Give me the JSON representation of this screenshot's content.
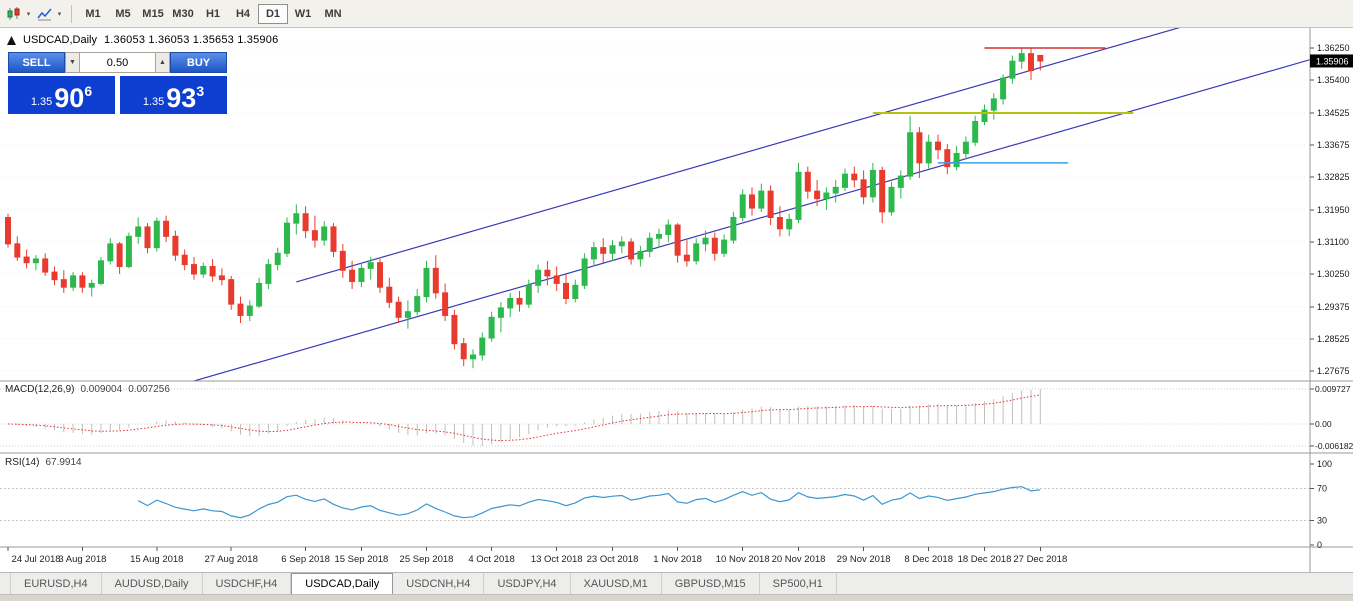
{
  "icons": {
    "caret": "▾",
    "spinner_up": "▲",
    "spinner_down": "▼"
  },
  "toolbar": {
    "timeframes": [
      "M1",
      "M5",
      "M15",
      "M30",
      "H1",
      "H4",
      "D1",
      "W1",
      "MN"
    ],
    "active_timeframe": "D1"
  },
  "chart_header": {
    "symbol": "USDCAD,Daily",
    "ohlc": "1.36053 1.36053 1.35653 1.35906"
  },
  "trade_panel": {
    "sell_label": "SELL",
    "buy_label": "BUY",
    "lot_value": "0.50",
    "sell_price_prefix": "1.35",
    "sell_price_big": "90",
    "sell_price_sup": "6",
    "buy_price_prefix": "1.35",
    "buy_price_big": "93",
    "buy_price_sup": "3"
  },
  "colors": {
    "bull": "#2db84d",
    "bear": "#e93a2e",
    "channel": "#3a3ab8",
    "grid": "#ebebeb",
    "separator": "#9a9a9a",
    "axis_text": "#1a1a1a",
    "macd_histogram": "#c0c0c0",
    "macd_signal": "#e03131",
    "rsi_line": "#3c96d2"
  },
  "chart_data": {
    "type": "candlestick",
    "symbol": "USDCAD",
    "timeframe": "Daily",
    "current_price": "1.35906",
    "y_axis": {
      "max": 1.3625,
      "min": 1.27675,
      "labels": [
        "1.36250",
        "1.35400",
        "1.34525",
        "1.33675",
        "1.32825",
        "1.31950",
        "1.31100",
        "1.30250",
        "1.29375",
        "1.28525",
        "1.27675"
      ]
    },
    "x_labels": [
      {
        "text": "24 Jul 2018",
        "i": 0
      },
      {
        "text": "3 Aug 2018",
        "i": 8
      },
      {
        "text": "15 Aug 2018",
        "i": 16
      },
      {
        "text": "27 Aug 2018",
        "i": 24
      },
      {
        "text": "6 Sep 2018",
        "i": 32
      },
      {
        "text": "15 Sep 2018",
        "i": 38
      },
      {
        "text": "25 Sep 2018",
        "i": 45
      },
      {
        "text": "4 Oct 2018",
        "i": 52
      },
      {
        "text": "13 Oct 2018",
        "i": 59
      },
      {
        "text": "23 Oct 2018",
        "i": 65
      },
      {
        "text": "1 Nov 2018",
        "i": 72
      },
      {
        "text": "10 Nov 2018",
        "i": 79
      },
      {
        "text": "20 Nov 2018",
        "i": 85
      },
      {
        "text": "29 Nov 2018",
        "i": 92
      },
      {
        "text": "8 Dec 2018",
        "i": 99
      },
      {
        "text": "18 Dec 2018",
        "i": 105
      },
      {
        "text": "27 Dec 2018",
        "i": 111
      }
    ],
    "candles": [
      [
        1.3175,
        1.3185,
        1.3095,
        1.3105
      ],
      [
        1.3105,
        1.3125,
        1.306,
        1.307
      ],
      [
        1.307,
        1.309,
        1.304,
        1.3055
      ],
      [
        1.3055,
        1.3075,
        1.3035,
        1.3065
      ],
      [
        1.3065,
        1.308,
        1.302,
        1.303
      ],
      [
        1.303,
        1.3045,
        1.2995,
        1.301
      ],
      [
        1.301,
        1.3035,
        1.2975,
        1.299
      ],
      [
        1.299,
        1.303,
        1.298,
        1.302
      ],
      [
        1.302,
        1.303,
        1.2975,
        1.299
      ],
      [
        1.299,
        1.301,
        1.2965,
        1.3
      ],
      [
        1.3,
        1.307,
        1.2995,
        1.306
      ],
      [
        1.306,
        1.312,
        1.305,
        1.3105
      ],
      [
        1.3105,
        1.311,
        1.3025,
        1.3045
      ],
      [
        1.3045,
        1.3135,
        1.304,
        1.3125
      ],
      [
        1.3125,
        1.3175,
        1.3105,
        1.315
      ],
      [
        1.315,
        1.316,
        1.308,
        1.3095
      ],
      [
        1.3095,
        1.3175,
        1.3085,
        1.3165
      ],
      [
        1.3165,
        1.318,
        1.311,
        1.3125
      ],
      [
        1.3125,
        1.314,
        1.306,
        1.3075
      ],
      [
        1.3075,
        1.309,
        1.3035,
        1.305
      ],
      [
        1.305,
        1.307,
        1.301,
        1.3025
      ],
      [
        1.3025,
        1.3055,
        1.3015,
        1.3045
      ],
      [
        1.3045,
        1.3065,
        1.3005,
        1.302
      ],
      [
        1.302,
        1.304,
        1.2995,
        1.301
      ],
      [
        1.301,
        1.302,
        1.293,
        1.2945
      ],
      [
        1.2945,
        1.2965,
        1.2895,
        1.2915
      ],
      [
        1.2915,
        1.2955,
        1.29,
        1.294
      ],
      [
        1.294,
        1.3015,
        1.2935,
        1.3
      ],
      [
        1.3,
        1.3065,
        1.2985,
        1.305
      ],
      [
        1.305,
        1.3095,
        1.3035,
        1.308
      ],
      [
        1.308,
        1.3175,
        1.307,
        1.316
      ],
      [
        1.316,
        1.321,
        1.313,
        1.3185
      ],
      [
        1.3185,
        1.3205,
        1.312,
        1.314
      ],
      [
        1.314,
        1.318,
        1.3095,
        1.3115
      ],
      [
        1.3115,
        1.3165,
        1.31,
        1.315
      ],
      [
        1.315,
        1.316,
        1.307,
        1.3085
      ],
      [
        1.3085,
        1.3105,
        1.3015,
        1.3035
      ],
      [
        1.3035,
        1.306,
        1.2985,
        1.3005
      ],
      [
        1.3005,
        1.3055,
        1.299,
        1.304
      ],
      [
        1.304,
        1.307,
        1.301,
        1.3055
      ],
      [
        1.3055,
        1.3065,
        1.2975,
        1.299
      ],
      [
        1.299,
        1.3015,
        1.2935,
        1.295
      ],
      [
        1.295,
        1.2965,
        1.2895,
        1.291
      ],
      [
        1.291,
        1.2955,
        1.288,
        1.2925
      ],
      [
        1.2925,
        1.2985,
        1.2915,
        1.2965
      ],
      [
        1.2965,
        1.306,
        1.295,
        1.304
      ],
      [
        1.304,
        1.3075,
        1.296,
        1.2975
      ],
      [
        1.2975,
        1.3,
        1.29,
        1.2915
      ],
      [
        1.2915,
        1.293,
        1.2825,
        1.284
      ],
      [
        1.284,
        1.2855,
        1.278,
        1.28
      ],
      [
        1.28,
        1.2825,
        1.2775,
        1.281
      ],
      [
        1.281,
        1.287,
        1.2795,
        1.2855
      ],
      [
        1.2855,
        1.2925,
        1.2845,
        1.291
      ],
      [
        1.291,
        1.295,
        1.287,
        1.2935
      ],
      [
        1.2935,
        1.2975,
        1.291,
        1.296
      ],
      [
        1.296,
        1.298,
        1.2925,
        1.2945
      ],
      [
        1.2945,
        1.301,
        1.2935,
        1.2995
      ],
      [
        1.2995,
        1.305,
        1.2975,
        1.3035
      ],
      [
        1.3035,
        1.306,
        1.2995,
        1.302
      ],
      [
        1.302,
        1.3045,
        1.298,
        1.3
      ],
      [
        1.3,
        1.3025,
        1.2945,
        1.296
      ],
      [
        1.296,
        1.301,
        1.295,
        1.2995
      ],
      [
        1.2995,
        1.308,
        1.2985,
        1.3065
      ],
      [
        1.3065,
        1.311,
        1.3045,
        1.3095
      ],
      [
        1.3095,
        1.312,
        1.3055,
        1.308
      ],
      [
        1.308,
        1.3115,
        1.306,
        1.31
      ],
      [
        1.31,
        1.3125,
        1.308,
        1.311
      ],
      [
        1.311,
        1.312,
        1.305,
        1.3065
      ],
      [
        1.3065,
        1.31,
        1.3045,
        1.3085
      ],
      [
        1.3085,
        1.3135,
        1.307,
        1.312
      ],
      [
        1.312,
        1.3145,
        1.3095,
        1.313
      ],
      [
        1.313,
        1.317,
        1.311,
        1.3155
      ],
      [
        1.3155,
        1.316,
        1.3055,
        1.3075
      ],
      [
        1.3075,
        1.3115,
        1.3045,
        1.306
      ],
      [
        1.306,
        1.312,
        1.305,
        1.3105
      ],
      [
        1.3105,
        1.314,
        1.3085,
        1.312
      ],
      [
        1.312,
        1.3135,
        1.306,
        1.308
      ],
      [
        1.308,
        1.313,
        1.307,
        1.3115
      ],
      [
        1.3115,
        1.319,
        1.3105,
        1.3175
      ],
      [
        1.3175,
        1.325,
        1.3165,
        1.3235
      ],
      [
        1.3235,
        1.3255,
        1.318,
        1.32
      ],
      [
        1.32,
        1.3265,
        1.319,
        1.3245
      ],
      [
        1.3245,
        1.326,
        1.3155,
        1.3175
      ],
      [
        1.3175,
        1.3205,
        1.3125,
        1.3145
      ],
      [
        1.3145,
        1.3185,
        1.3125,
        1.317
      ],
      [
        1.317,
        1.332,
        1.316,
        1.3295
      ],
      [
        1.3295,
        1.331,
        1.3225,
        1.3245
      ],
      [
        1.3245,
        1.3275,
        1.3205,
        1.3225
      ],
      [
        1.3225,
        1.3255,
        1.3195,
        1.324
      ],
      [
        1.324,
        1.3275,
        1.3215,
        1.3255
      ],
      [
        1.3255,
        1.3305,
        1.3245,
        1.329
      ],
      [
        1.329,
        1.331,
        1.3255,
        1.3275
      ],
      [
        1.3275,
        1.33,
        1.321,
        1.323
      ],
      [
        1.323,
        1.332,
        1.3215,
        1.33
      ],
      [
        1.33,
        1.331,
        1.316,
        1.319
      ],
      [
        1.319,
        1.327,
        1.318,
        1.3255
      ],
      [
        1.3255,
        1.33,
        1.3225,
        1.3285
      ],
      [
        1.3285,
        1.3445,
        1.3275,
        1.34
      ],
      [
        1.34,
        1.3415,
        1.328,
        1.332
      ],
      [
        1.332,
        1.3395,
        1.3305,
        1.3375
      ],
      [
        1.3375,
        1.3395,
        1.333,
        1.3355
      ],
      [
        1.3355,
        1.337,
        1.329,
        1.331
      ],
      [
        1.331,
        1.3365,
        1.33,
        1.3345
      ],
      [
        1.3345,
        1.339,
        1.333,
        1.3375
      ],
      [
        1.3375,
        1.3445,
        1.3365,
        1.343
      ],
      [
        1.343,
        1.3475,
        1.342,
        1.346
      ],
      [
        1.346,
        1.3505,
        1.3435,
        1.349
      ],
      [
        1.349,
        1.3555,
        1.3475,
        1.3545
      ],
      [
        1.3545,
        1.3605,
        1.353,
        1.359
      ],
      [
        1.359,
        1.3625,
        1.357,
        1.361
      ],
      [
        1.361,
        1.3625,
        1.354,
        1.3565
      ],
      [
        1.36053,
        1.36053,
        1.35653,
        1.35906
      ]
    ],
    "overlays": {
      "horizontal_lines": [
        {
          "price": 1.3625,
          "color": "#d62e2e",
          "from_i": 105,
          "to_i": 118,
          "width": 1.6
        },
        {
          "price": 1.34525,
          "color": "#b5c20e",
          "from_i": 93,
          "to_i": 121,
          "width": 2
        },
        {
          "price": 1.332,
          "color": "#3aa0e8",
          "from_i": 100,
          "to_i": 114,
          "width": 1.6
        }
      ],
      "channel_lines": [
        {
          "i1": 20,
          "p1": 1.2741,
          "i2": 140,
          "p2": 1.3594
        },
        {
          "i1": 31,
          "p1": 1.3004,
          "i2": 140,
          "p2": 1.3779
        }
      ]
    },
    "macd": {
      "name": "MACD(12,26,9)",
      "value_main": "0.009004",
      "value_signal": "0.007256",
      "params": [
        12,
        26,
        9
      ],
      "axis_labels": [
        "0.009727",
        "0.00",
        "-0.006182"
      ]
    },
    "rsi": {
      "name": "RSI(14)",
      "value": "67.9914",
      "period": 14,
      "levels": [
        70,
        30
      ],
      "axis_labels": [
        "100",
        "70",
        "30",
        "0"
      ]
    }
  },
  "tabs": {
    "items": [
      "EURUSD,H4",
      "AUDUSD,Daily",
      "USDCHF,H4",
      "USDCAD,Daily",
      "USDCNH,H4",
      "USDJPY,H4",
      "XAUUSD,M1",
      "GBPUSD,M15",
      "SP500,H1"
    ],
    "active": "USDCAD,Daily"
  }
}
